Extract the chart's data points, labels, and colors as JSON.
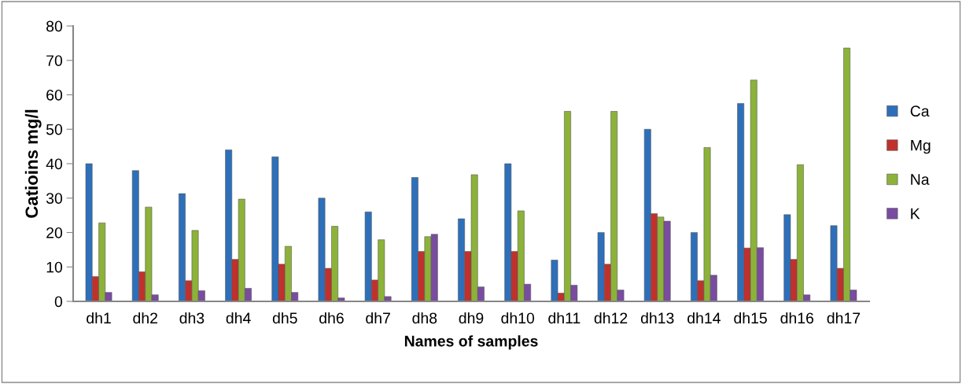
{
  "chart_data": {
    "type": "bar",
    "xlabel": "Names of samples",
    "ylabel": "Catioins mg/l",
    "categories": [
      "dh1",
      "dh2",
      "dh3",
      "dh4",
      "dh5",
      "dh6",
      "dh7",
      "dh8",
      "dh9",
      "dh10",
      "dh11",
      "dh12",
      "dh13",
      "dh14",
      "dh15",
      "dh16",
      "dh17"
    ],
    "series": [
      {
        "name": "Ca",
        "color": "#2e6fba",
        "values": [
          40,
          38,
          31.3,
          44,
          42,
          30,
          26,
          36,
          24,
          40,
          12,
          20,
          50,
          20,
          57.5,
          25.2,
          22
        ]
      },
      {
        "name": "Mg",
        "color": "#c0312d",
        "values": [
          7.2,
          8.6,
          6,
          12.2,
          10.8,
          9.6,
          6.2,
          14.5,
          14.5,
          14.5,
          2.4,
          10.8,
          25.5,
          6,
          15.5,
          12.2,
          9.6
        ]
      },
      {
        "name": "Na",
        "color": "#8cb23a",
        "values": [
          22.8,
          27.4,
          20.6,
          29.7,
          16,
          21.8,
          17.9,
          18.8,
          36.8,
          26.3,
          55.2,
          55.2,
          24.5,
          44.7,
          64.3,
          39.7,
          73.6
        ]
      },
      {
        "name": "K",
        "color": "#7a4ca0",
        "values": [
          2.6,
          1.9,
          3.1,
          3.8,
          2.6,
          1,
          1.4,
          19.5,
          4.2,
          5,
          4.7,
          3.3,
          23.3,
          7.6,
          15.6,
          1.9,
          3.3
        ]
      }
    ],
    "ylim": [
      0,
      80
    ],
    "yticks": [
      0,
      10,
      20,
      30,
      40,
      50,
      60,
      70,
      80
    ],
    "grid": false,
    "legend": "right"
  }
}
